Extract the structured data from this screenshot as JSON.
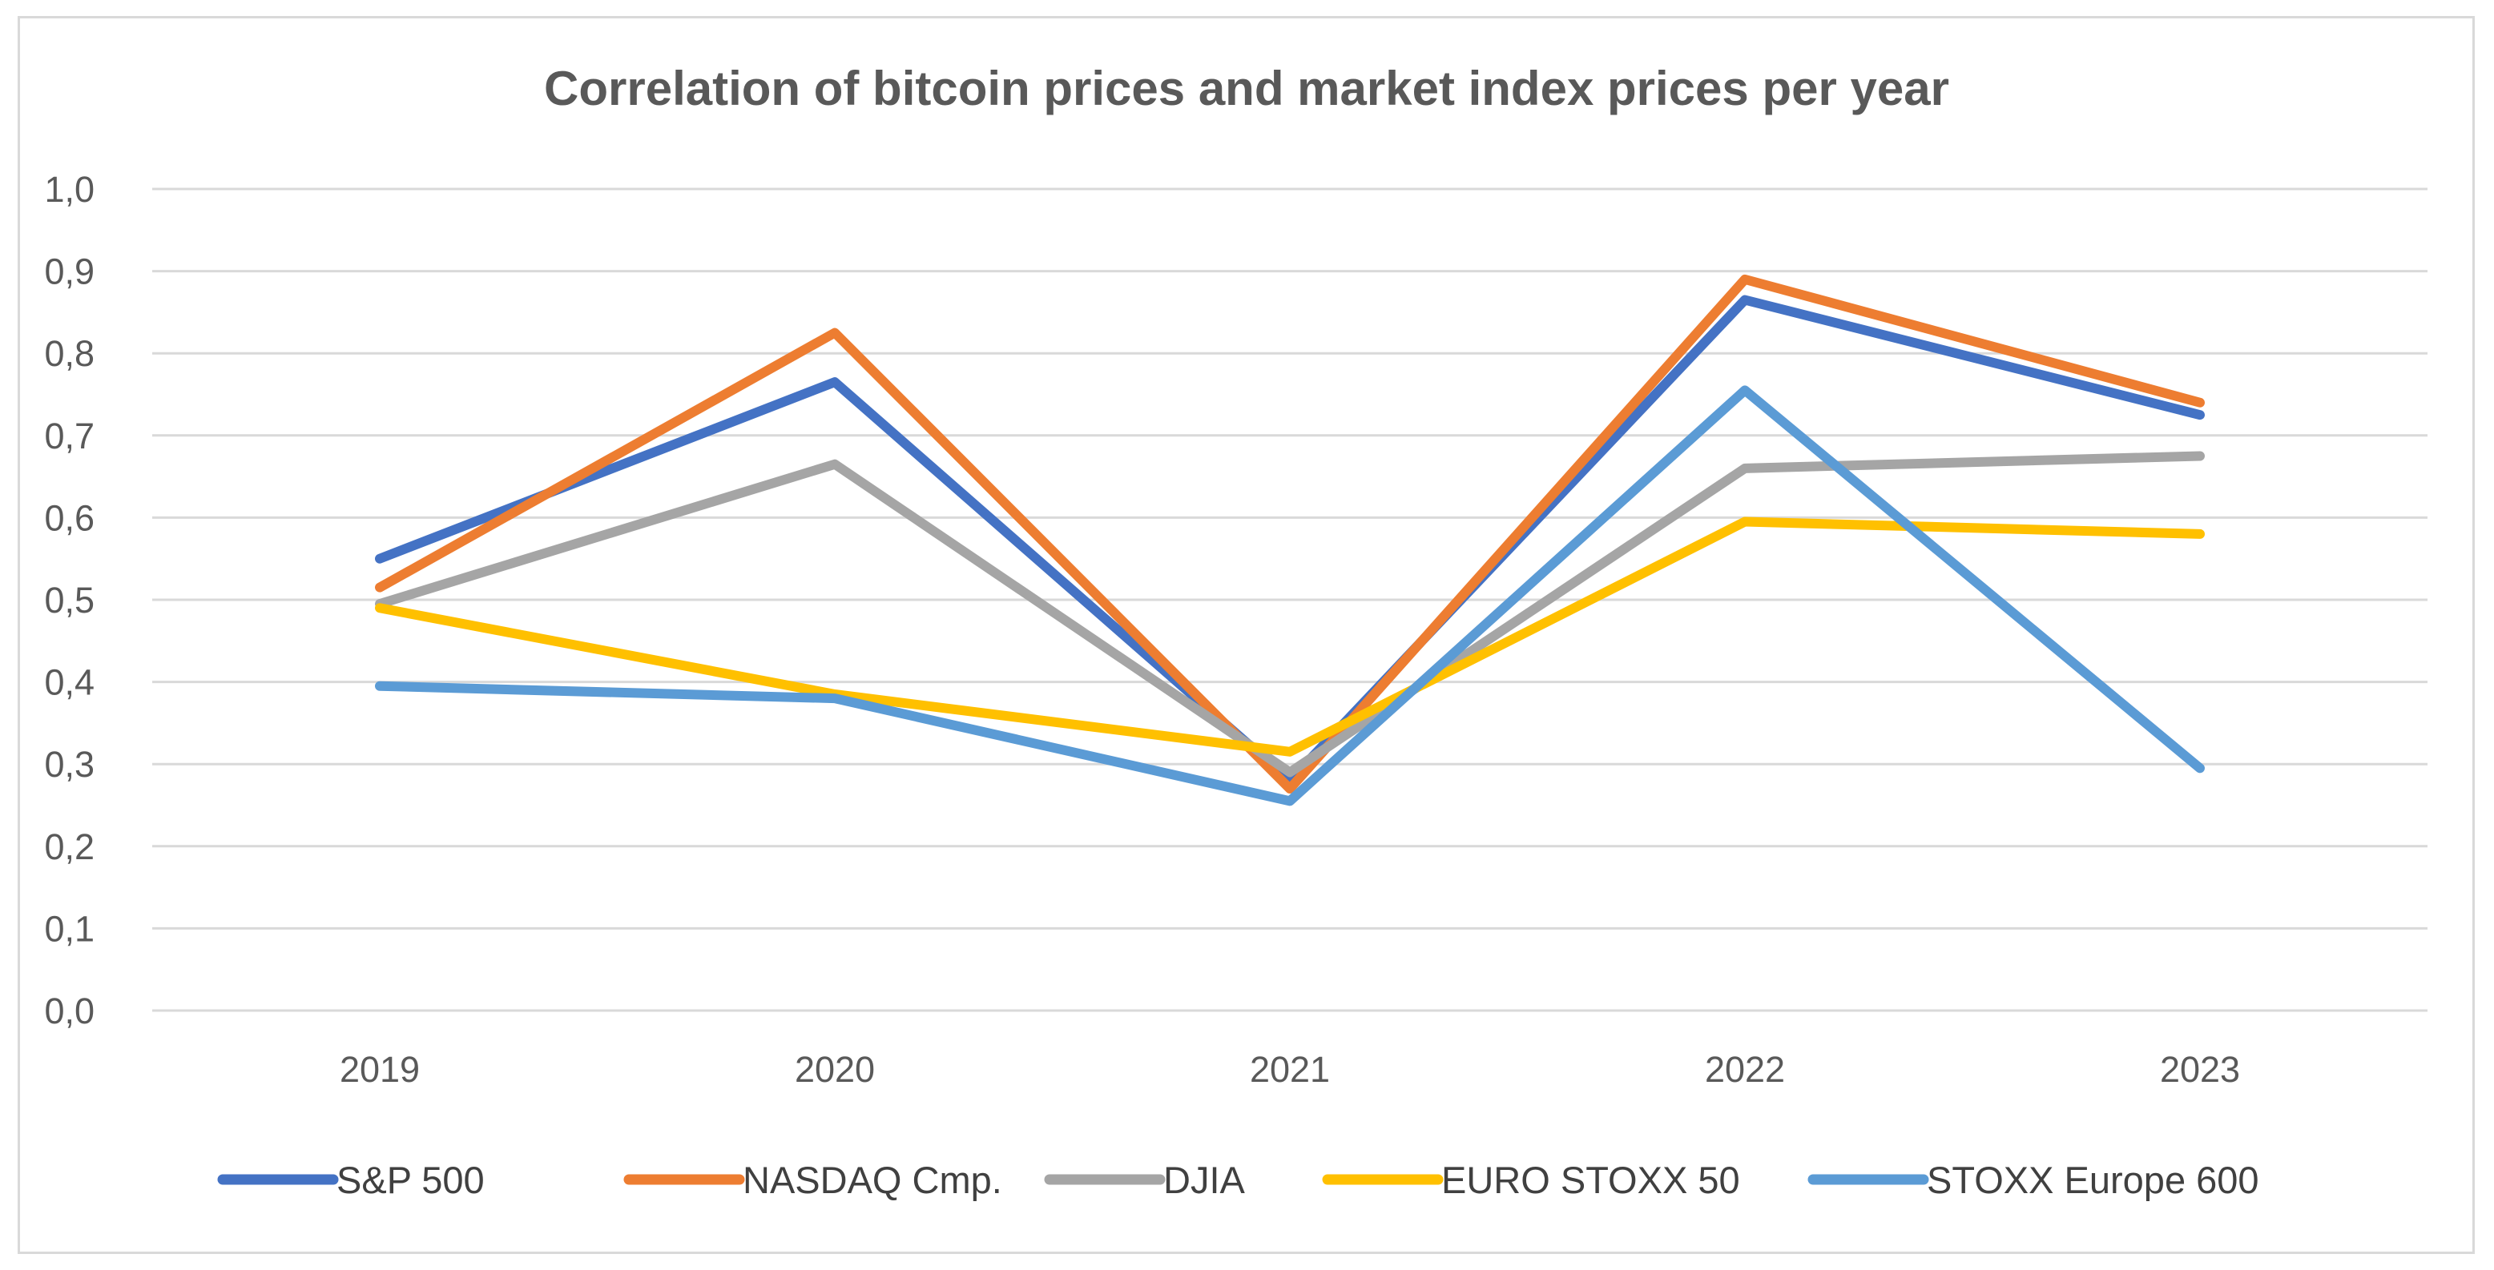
{
  "chart_data": {
    "type": "line",
    "title": "Correlation of bitcoin prices and market index prices per year",
    "xlabel": "",
    "ylabel": "",
    "categories": [
      "2019",
      "2020",
      "2021",
      "2022",
      "2023"
    ],
    "ylim": [
      0,
      1.0
    ],
    "yticks": [
      "0,0",
      "0,1",
      "0,2",
      "0,3",
      "0,4",
      "0,5",
      "0,6",
      "0,7",
      "0,8",
      "0,9",
      "1,0"
    ],
    "grid": true,
    "legend_position": "bottom",
    "series": [
      {
        "name": "S&P 500",
        "color": "#4472c4",
        "values": [
          0.55,
          0.765,
          0.28,
          0.865,
          0.725
        ]
      },
      {
        "name": "NASDAQ Cmp.",
        "color": "#ed7d31",
        "values": [
          0.515,
          0.825,
          0.27,
          0.89,
          0.74
        ]
      },
      {
        "name": "DJIA",
        "color": "#a5a5a5",
        "values": [
          0.495,
          0.665,
          0.29,
          0.66,
          0.675
        ]
      },
      {
        "name": "EURO STOXX 50",
        "color": "#ffc000",
        "values": [
          0.49,
          0.385,
          0.315,
          0.595,
          0.58
        ]
      },
      {
        "name": "STOXX Europe 600",
        "color": "#5b9bd5",
        "values": [
          0.395,
          0.38,
          0.255,
          0.755,
          0.295
        ]
      }
    ]
  }
}
